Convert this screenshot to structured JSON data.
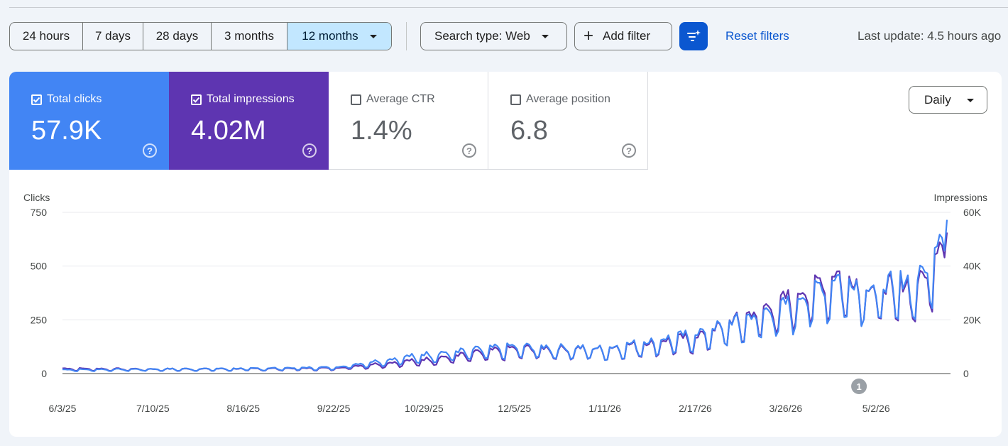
{
  "toolbar": {
    "date_ranges": [
      "24 hours",
      "7 days",
      "28 days",
      "3 months",
      "12 months"
    ],
    "selected_range": "12 months",
    "search_type": "Search type: Web",
    "add_filter": "Add filter",
    "reset_filters": "Reset filters",
    "last_update": "Last update: 4.5 hours ago"
  },
  "metrics": {
    "clicks": {
      "label": "Total clicks",
      "value": "57.9K",
      "checked": true
    },
    "impressions": {
      "label": "Total impressions",
      "value": "4.02M",
      "checked": true
    },
    "ctr": {
      "label": "Average CTR",
      "value": "1.4%",
      "checked": false
    },
    "position": {
      "label": "Average position",
      "value": "6.8",
      "checked": false
    }
  },
  "granularity": "Daily",
  "colors": {
    "clicks": "#4285f4",
    "impressions": "#5e35b1",
    "accent": "#0b57d0"
  },
  "chart_data": {
    "type": "line",
    "ylabel_left": "Clicks",
    "ylabel_right": "Impressions",
    "y_left_ticks": [
      "0",
      "250",
      "500",
      "750"
    ],
    "y_right_ticks": [
      "0",
      "20K",
      "40K",
      "60K"
    ],
    "ylim_left": [
      0,
      750
    ],
    "ylim_right": [
      0,
      60000
    ],
    "x_ticks": [
      "6/3/25",
      "7/10/25",
      "8/16/25",
      "9/22/25",
      "10/29/25",
      "12/5/25",
      "1/11/26",
      "2/17/26",
      "3/26/26",
      "5/2/26"
    ],
    "x_start": "6/3/25",
    "x_end": "5/31/26",
    "annotation": {
      "label": "1",
      "date": "4/25/26"
    },
    "series": [
      {
        "name": "Clicks",
        "axis": "left",
        "anchors_x": [
          "6/3/25",
          "7/10/25",
          "8/16/25",
          "9/22/25",
          "10/29/25",
          "12/5/25",
          "1/11/26",
          "2/17/26",
          "3/26/26",
          "4/15/26",
          "5/2/26",
          "5/20/26",
          "5/31/26"
        ],
        "anchors_y": [
          18,
          20,
          22,
          28,
          85,
          120,
          110,
          175,
          300,
          420,
          380,
          420,
          690
        ],
        "peak": 715
      },
      {
        "name": "Impressions",
        "axis": "right",
        "anchors_x": [
          "6/3/25",
          "7/10/25",
          "8/16/25",
          "9/22/25",
          "10/29/25",
          "12/5/25",
          "1/11/26",
          "2/17/26",
          "3/26/26",
          "4/15/26",
          "5/2/26",
          "5/20/26",
          "5/31/26"
        ],
        "anchors_y": [
          1800,
          1600,
          1700,
          2000,
          5000,
          9000,
          8800,
          13000,
          26000,
          35000,
          30000,
          32000,
          52000
        ],
        "peak": 52500
      }
    ]
  }
}
